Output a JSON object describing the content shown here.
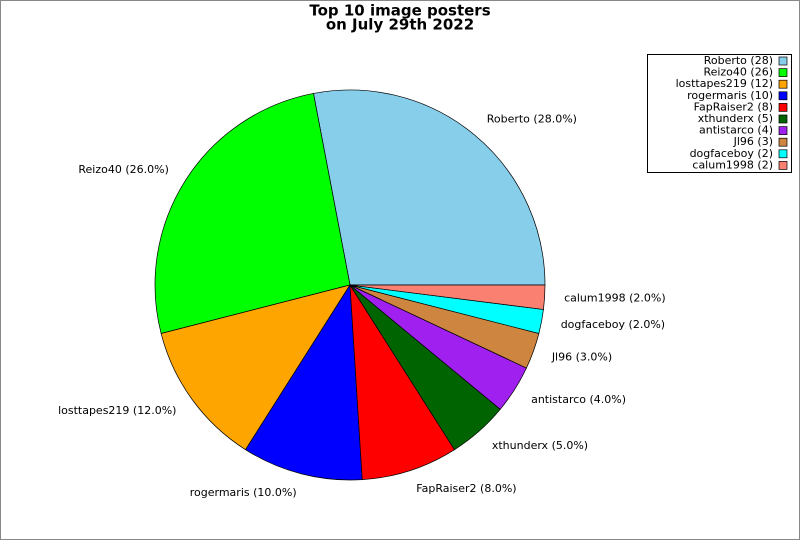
{
  "chart_data": {
    "type": "pie",
    "title": [
      "Top 10 image posters",
      "on July 29th 2022"
    ],
    "labels": [
      "Roberto (28)",
      "Reizo40 (26)",
      "losttapes219 (12)",
      "rogermaris (10)",
      "FapRaiser2 (8)",
      "xthunderx (5)",
      "antistarco (4)",
      "Jl96 (3)",
      "dogfaceboy (2)",
      "calum1998 (2)"
    ],
    "values": [
      28,
      26,
      12,
      10,
      8,
      5,
      4,
      3,
      2,
      2
    ],
    "value_labels": [
      "Roberto (28.0%)",
      "Reizo40 (26.0%)",
      "losttapes219 (12.0%)",
      "rogermaris (10.0%)",
      "FapRaiser2 (8.0%)",
      "xthunderx (5.0%)",
      "antistarco (4.0%)",
      "Jl96 (3.0%)",
      "dogfaceboy (2.0%)",
      "calum1998 (2.0%)"
    ],
    "colors": [
      "#87ceeb",
      "#00ff00",
      "#ffa500",
      "#0000ff",
      "#ff0000",
      "#006400",
      "#a020f0",
      "#cd853f",
      "#00ffff",
      "#fa8072"
    ],
    "legend": "upper right"
  }
}
